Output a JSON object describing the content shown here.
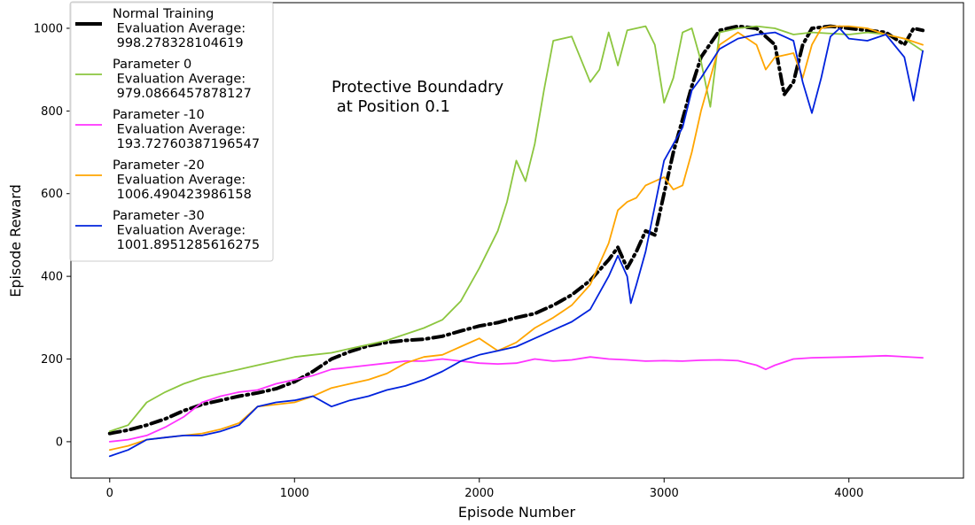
{
  "chart_data": {
    "type": "line",
    "xlabel": "Episode Number",
    "ylabel": "Episode Reward",
    "xlim": [
      -210,
      4620
    ],
    "ylim": [
      -88,
      1062
    ],
    "xticks": [
      0,
      1000,
      2000,
      3000,
      4000
    ],
    "yticks": [
      0,
      200,
      400,
      600,
      800,
      1000
    ],
    "grid": false,
    "legend_position": "upper-left",
    "annotation": {
      "lines": [
        "Protective Boundadry",
        " at Position 0.1"
      ],
      "x": 1200,
      "y": 840
    },
    "series": [
      {
        "name": "Normal Training",
        "legend_lines": [
          "Normal Training",
          " Evaluation Average:",
          " 998.278328104619"
        ],
        "color": "#000000",
        "style": "dashdot",
        "points": [
          [
            0,
            20
          ],
          [
            100,
            28
          ],
          [
            200,
            40
          ],
          [
            300,
            55
          ],
          [
            400,
            75
          ],
          [
            500,
            90
          ],
          [
            600,
            100
          ],
          [
            700,
            110
          ],
          [
            800,
            118
          ],
          [
            900,
            128
          ],
          [
            1000,
            145
          ],
          [
            1100,
            170
          ],
          [
            1200,
            200
          ],
          [
            1300,
            218
          ],
          [
            1400,
            232
          ],
          [
            1500,
            240
          ],
          [
            1600,
            245
          ],
          [
            1700,
            248
          ],
          [
            1800,
            255
          ],
          [
            1900,
            268
          ],
          [
            2000,
            280
          ],
          [
            2100,
            288
          ],
          [
            2200,
            300
          ],
          [
            2300,
            310
          ],
          [
            2400,
            330
          ],
          [
            2500,
            355
          ],
          [
            2600,
            390
          ],
          [
            2700,
            440
          ],
          [
            2750,
            470
          ],
          [
            2800,
            420
          ],
          [
            2850,
            460
          ],
          [
            2900,
            510
          ],
          [
            2950,
            500
          ],
          [
            3000,
            600
          ],
          [
            3050,
            700
          ],
          [
            3100,
            780
          ],
          [
            3150,
            860
          ],
          [
            3200,
            930
          ],
          [
            3300,
            995
          ],
          [
            3400,
            1005
          ],
          [
            3500,
            1000
          ],
          [
            3600,
            960
          ],
          [
            3650,
            840
          ],
          [
            3700,
            870
          ],
          [
            3750,
            960
          ],
          [
            3800,
            1000
          ],
          [
            3900,
            1005
          ],
          [
            4000,
            1000
          ],
          [
            4100,
            995
          ],
          [
            4200,
            990
          ],
          [
            4300,
            960
          ],
          [
            4350,
            1000
          ],
          [
            4400,
            995
          ]
        ]
      },
      {
        "name": "Parameter 0",
        "legend_lines": [
          "Parameter 0",
          " Evaluation Average:",
          " 979.0866457878127"
        ],
        "color": "#8cc63f",
        "style": "solid",
        "points": [
          [
            0,
            25
          ],
          [
            100,
            40
          ],
          [
            200,
            95
          ],
          [
            300,
            120
          ],
          [
            400,
            140
          ],
          [
            500,
            155
          ],
          [
            600,
            165
          ],
          [
            700,
            175
          ],
          [
            800,
            185
          ],
          [
            900,
            195
          ],
          [
            1000,
            205
          ],
          [
            1100,
            210
          ],
          [
            1200,
            215
          ],
          [
            1300,
            225
          ],
          [
            1400,
            235
          ],
          [
            1500,
            245
          ],
          [
            1600,
            260
          ],
          [
            1700,
            275
          ],
          [
            1800,
            295
          ],
          [
            1900,
            340
          ],
          [
            2000,
            420
          ],
          [
            2100,
            510
          ],
          [
            2150,
            580
          ],
          [
            2200,
            680
          ],
          [
            2250,
            630
          ],
          [
            2300,
            720
          ],
          [
            2350,
            850
          ],
          [
            2400,
            970
          ],
          [
            2500,
            980
          ],
          [
            2600,
            870
          ],
          [
            2650,
            900
          ],
          [
            2700,
            990
          ],
          [
            2750,
            910
          ],
          [
            2800,
            995
          ],
          [
            2900,
            1005
          ],
          [
            2950,
            960
          ],
          [
            3000,
            820
          ],
          [
            3050,
            880
          ],
          [
            3100,
            990
          ],
          [
            3150,
            1000
          ],
          [
            3200,
            920
          ],
          [
            3250,
            810
          ],
          [
            3300,
            990
          ],
          [
            3400,
            1000
          ],
          [
            3500,
            1005
          ],
          [
            3600,
            1000
          ],
          [
            3700,
            985
          ],
          [
            3800,
            990
          ],
          [
            4000,
            985
          ],
          [
            4100,
            990
          ],
          [
            4200,
            985
          ],
          [
            4300,
            975
          ],
          [
            4400,
            945
          ]
        ]
      },
      {
        "name": "Parameter -10",
        "legend_lines": [
          "Parameter -10",
          " Evaluation Average:",
          " 193.72760387196547"
        ],
        "color": "#ff33ff",
        "style": "solid",
        "points": [
          [
            0,
            0
          ],
          [
            100,
            5
          ],
          [
            200,
            15
          ],
          [
            300,
            35
          ],
          [
            400,
            60
          ],
          [
            500,
            95
          ],
          [
            600,
            110
          ],
          [
            700,
            120
          ],
          [
            800,
            125
          ],
          [
            900,
            140
          ],
          [
            1000,
            150
          ],
          [
            1100,
            160
          ],
          [
            1200,
            175
          ],
          [
            1300,
            180
          ],
          [
            1400,
            185
          ],
          [
            1500,
            190
          ],
          [
            1600,
            195
          ],
          [
            1700,
            195
          ],
          [
            1800,
            200
          ],
          [
            1900,
            195
          ],
          [
            2000,
            190
          ],
          [
            2100,
            188
          ],
          [
            2200,
            190
          ],
          [
            2300,
            200
          ],
          [
            2400,
            195
          ],
          [
            2500,
            198
          ],
          [
            2600,
            205
          ],
          [
            2700,
            200
          ],
          [
            2800,
            198
          ],
          [
            2900,
            195
          ],
          [
            3000,
            196
          ],
          [
            3100,
            195
          ],
          [
            3200,
            197
          ],
          [
            3300,
            198
          ],
          [
            3400,
            196
          ],
          [
            3500,
            185
          ],
          [
            3550,
            175
          ],
          [
            3600,
            185
          ],
          [
            3700,
            200
          ],
          [
            3800,
            203
          ],
          [
            4000,
            205
          ],
          [
            4200,
            208
          ],
          [
            4400,
            203
          ]
        ]
      },
      {
        "name": "Parameter -20",
        "legend_lines": [
          "Parameter -20",
          " Evaluation Average:",
          " 1006.490423986158"
        ],
        "color": "#ffa500",
        "style": "solid",
        "points": [
          [
            0,
            -20
          ],
          [
            100,
            -10
          ],
          [
            200,
            5
          ],
          [
            300,
            10
          ],
          [
            400,
            15
          ],
          [
            500,
            20
          ],
          [
            600,
            30
          ],
          [
            700,
            45
          ],
          [
            800,
            85
          ],
          [
            900,
            90
          ],
          [
            1000,
            95
          ],
          [
            1100,
            110
          ],
          [
            1200,
            130
          ],
          [
            1300,
            140
          ],
          [
            1400,
            150
          ],
          [
            1500,
            165
          ],
          [
            1600,
            190
          ],
          [
            1700,
            205
          ],
          [
            1800,
            210
          ],
          [
            1900,
            230
          ],
          [
            2000,
            250
          ],
          [
            2100,
            220
          ],
          [
            2200,
            240
          ],
          [
            2300,
            275
          ],
          [
            2400,
            300
          ],
          [
            2500,
            330
          ],
          [
            2600,
            380
          ],
          [
            2700,
            480
          ],
          [
            2750,
            560
          ],
          [
            2800,
            580
          ],
          [
            2850,
            590
          ],
          [
            2900,
            620
          ],
          [
            3000,
            640
          ],
          [
            3050,
            610
          ],
          [
            3100,
            620
          ],
          [
            3150,
            700
          ],
          [
            3200,
            800
          ],
          [
            3250,
            880
          ],
          [
            3300,
            960
          ],
          [
            3400,
            990
          ],
          [
            3500,
            960
          ],
          [
            3550,
            900
          ],
          [
            3600,
            930
          ],
          [
            3700,
            940
          ],
          [
            3750,
            880
          ],
          [
            3800,
            960
          ],
          [
            3850,
            1000
          ],
          [
            3900,
            1005
          ],
          [
            4000,
            1005
          ],
          [
            4100,
            1000
          ],
          [
            4200,
            985
          ],
          [
            4300,
            975
          ],
          [
            4400,
            960
          ]
        ]
      },
      {
        "name": "Parameter -30",
        "legend_lines": [
          "Parameter -30",
          " Evaluation Average:",
          " 1001.8951285616275"
        ],
        "color": "#0022dd",
        "style": "solid",
        "points": [
          [
            0,
            -35
          ],
          [
            100,
            -20
          ],
          [
            200,
            5
          ],
          [
            300,
            10
          ],
          [
            400,
            15
          ],
          [
            500,
            15
          ],
          [
            600,
            25
          ],
          [
            700,
            40
          ],
          [
            800,
            85
          ],
          [
            900,
            95
          ],
          [
            1000,
            100
          ],
          [
            1100,
            110
          ],
          [
            1200,
            85
          ],
          [
            1300,
            100
          ],
          [
            1400,
            110
          ],
          [
            1500,
            125
          ],
          [
            1600,
            135
          ],
          [
            1700,
            150
          ],
          [
            1800,
            170
          ],
          [
            1900,
            195
          ],
          [
            2000,
            210
          ],
          [
            2100,
            220
          ],
          [
            2200,
            230
          ],
          [
            2300,
            250
          ],
          [
            2400,
            270
          ],
          [
            2500,
            290
          ],
          [
            2600,
            320
          ],
          [
            2700,
            400
          ],
          [
            2750,
            450
          ],
          [
            2800,
            400
          ],
          [
            2820,
            335
          ],
          [
            2850,
            380
          ],
          [
            2900,
            460
          ],
          [
            3000,
            680
          ],
          [
            3050,
            720
          ],
          [
            3100,
            760
          ],
          [
            3150,
            850
          ],
          [
            3200,
            880
          ],
          [
            3300,
            950
          ],
          [
            3400,
            975
          ],
          [
            3500,
            985
          ],
          [
            3600,
            990
          ],
          [
            3700,
            970
          ],
          [
            3750,
            870
          ],
          [
            3800,
            795
          ],
          [
            3850,
            880
          ],
          [
            3900,
            980
          ],
          [
            3950,
            1000
          ],
          [
            4000,
            975
          ],
          [
            4100,
            970
          ],
          [
            4200,
            985
          ],
          [
            4300,
            930
          ],
          [
            4350,
            825
          ],
          [
            4400,
            945
          ]
        ]
      }
    ]
  }
}
